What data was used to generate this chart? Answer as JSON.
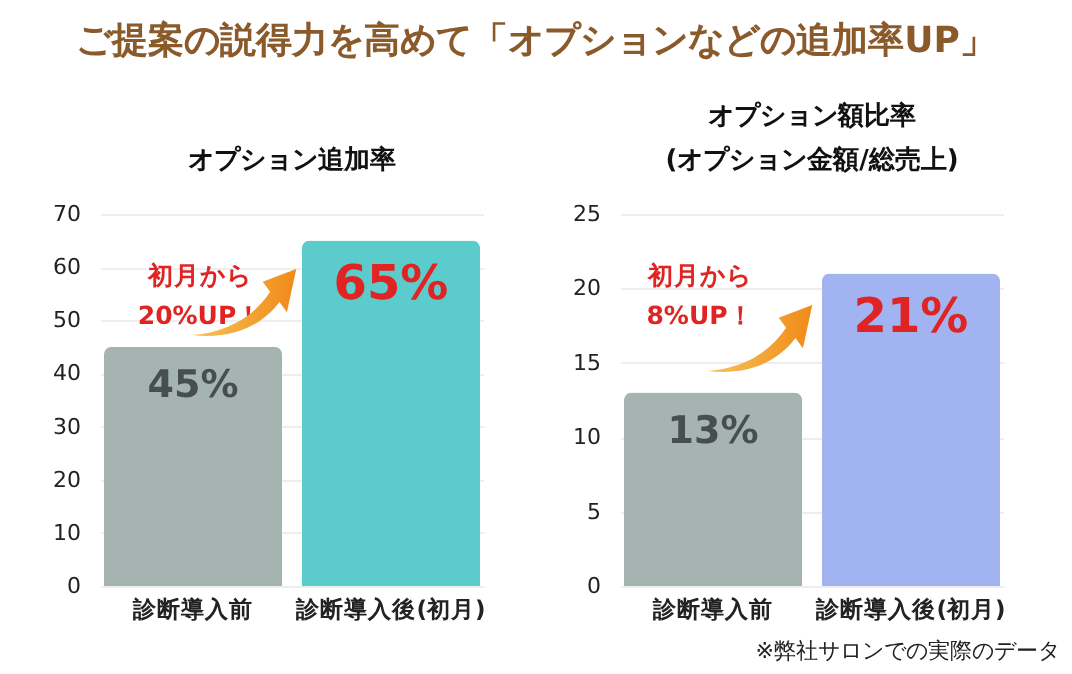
{
  "chart_data": [
    {
      "type": "bar",
      "title": "ご提案の説得力を高めて「オプションなどの追加率UP」",
      "subtitle": "オプション追加率",
      "categories": [
        "診断導入前",
        "診断導入後(初月)"
      ],
      "values": [
        45,
        65
      ],
      "colors": [
        "#a6b4b1",
        "#5ccbcb"
      ],
      "value_labels": [
        "45%",
        "65%"
      ],
      "ylim": [
        0,
        70
      ],
      "yticks": [
        0,
        10,
        20,
        30,
        40,
        50,
        60,
        70
      ],
      "grid": "y",
      "annotations": [
        "初月から\n20%UP！"
      ]
    },
    {
      "type": "bar",
      "title": "オプション額比率",
      "subtitle": "(オプション金額/総売上)",
      "categories": [
        "診断導入前",
        "診断導入後(初月)"
      ],
      "values": [
        13,
        21
      ],
      "colors": [
        "#a6b4b1",
        "#a1b3f1"
      ],
      "value_labels": [
        "13%",
        "21%"
      ],
      "ylim": [
        0,
        25
      ],
      "yticks": [
        0,
        5,
        10,
        15,
        20,
        25
      ],
      "grid": "y",
      "annotations": [
        "初月から\n8%UP！",
        "※弊社サロンでの実際のデータ"
      ]
    }
  ]
}
